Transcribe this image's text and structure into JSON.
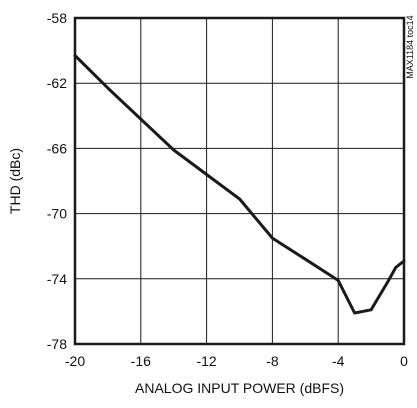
{
  "chart_data": {
    "type": "line",
    "title": "",
    "xlabel": "ANALOG INPUT POWER (dBFS)",
    "ylabel": "THD (dBc)",
    "side_label": "MAX1184 toc14",
    "xlim": [
      -20,
      0
    ],
    "ylim": [
      -78,
      -58
    ],
    "x_ticks": [
      -20,
      -16,
      -12,
      -8,
      -4,
      0
    ],
    "y_ticks": [
      -58,
      -62,
      -66,
      -70,
      -74,
      -78
    ],
    "grid": true,
    "legend": "none",
    "colors": {
      "line": "#1a1a1a",
      "grid": "#1a1a1a",
      "frame": "#1a1a1a"
    },
    "series": [
      {
        "x": [
          -20,
          -18,
          -16,
          -14,
          -12,
          -10,
          -8,
          -6,
          -4,
          -3,
          -2,
          -1,
          -0.5,
          0
        ],
        "y": [
          -60.3,
          -62.3,
          -64.2,
          -66.1,
          -67.6,
          -69.1,
          -71.5,
          -72.8,
          -74.1,
          -76.1,
          -75.9,
          -74.2,
          -73.3,
          -72.9
        ]
      }
    ]
  }
}
